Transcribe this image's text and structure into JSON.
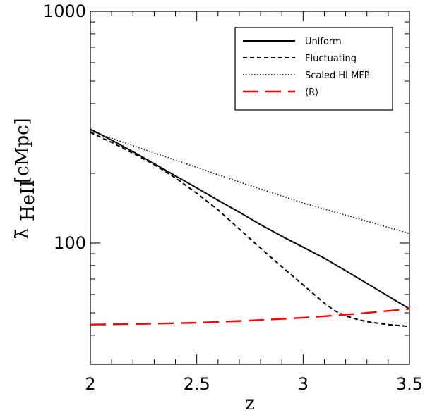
{
  "chart_data": {
    "type": "line",
    "title": "",
    "xlabel": "z",
    "ylabel": "λ̄",
    "ylabel_subscript": "HeII",
    "ylabel_units": "[cMpc]",
    "xlim": [
      2,
      3.5
    ],
    "ylim": [
      30,
      1000
    ],
    "yscale": "log",
    "x_ticks": [
      "2",
      "2.5",
      "3",
      "3.5"
    ],
    "y_ticks": [
      "100",
      "1000"
    ],
    "legend_position": "top-right",
    "series": [
      {
        "name": "Uniform",
        "color": "#000000",
        "style": "solid",
        "x": [
          2.0,
          2.1,
          2.2,
          2.3,
          2.4,
          2.5,
          2.6,
          2.7,
          2.8,
          2.9,
          3.0,
          3.1,
          3.2,
          3.3,
          3.4,
          3.5
        ],
        "y": [
          310,
          278,
          248,
          220,
          195,
          173,
          153,
          136,
          120,
          107,
          96,
          86,
          76,
          67,
          59,
          52
        ]
      },
      {
        "name": "Fluctuating",
        "color": "#000000",
        "style": "dashed",
        "x": [
          2.0,
          2.1,
          2.2,
          2.3,
          2.4,
          2.5,
          2.6,
          2.7,
          2.8,
          2.9,
          3.0,
          3.1,
          3.15,
          3.2,
          3.25,
          3.3,
          3.4,
          3.5
        ],
        "y": [
          300,
          272,
          244,
          218,
          191,
          164,
          139,
          115,
          95,
          79,
          66,
          55,
          51,
          48.5,
          47,
          45.8,
          44.5,
          43.7
        ]
      },
      {
        "name": "Scaled HI MFP",
        "color": "#000000",
        "style": "dotted",
        "x": [
          2.0,
          2.25,
          2.5,
          2.75,
          3.0,
          3.25,
          3.5
        ],
        "y": [
          305,
          254,
          212,
          177,
          149,
          128,
          110
        ]
      },
      {
        "name": "⟨R⟩",
        "color": "#ff0000",
        "style": "longdash",
        "x": [
          2.0,
          2.25,
          2.5,
          2.75,
          3.0,
          3.25,
          3.5
        ],
        "y": [
          44.5,
          44.8,
          45.3,
          46.3,
          47.6,
          49.5,
          52.0
        ]
      }
    ]
  }
}
